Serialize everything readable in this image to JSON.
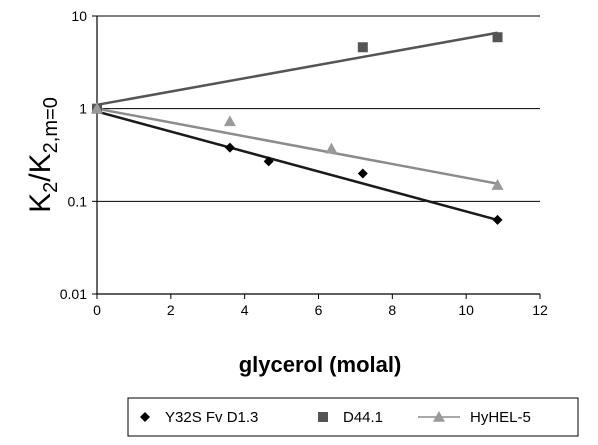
{
  "chart_data": {
    "type": "scatter",
    "xlabel": "glycerol (molal)",
    "ylabel_main": "K",
    "ylabel_sub1": "2",
    "ylabel_mid": "/K",
    "ylabel_sub2": "2,m=0",
    "x_scale": "linear",
    "y_scale": "log",
    "xlim": [
      0,
      12
    ],
    "ylim": [
      0.01,
      10
    ],
    "x_ticks": [
      "0",
      "2",
      "4",
      "6",
      "8",
      "10",
      "12"
    ],
    "y_ticks": [
      "0.01",
      "0.1",
      "1",
      "10"
    ],
    "gridlines": "horizontal",
    "legend_position": "bottom",
    "series": [
      {
        "name": "Y32S Fv D1.3",
        "marker": "diamond",
        "color": "#000000",
        "trendline_color": "#1a1a1a",
        "points": [
          [
            0,
            1.0
          ],
          [
            3.6,
            0.38
          ],
          [
            4.65,
            0.27
          ],
          [
            7.2,
            0.2
          ],
          [
            10.85,
            0.063
          ]
        ],
        "fit": [
          [
            0,
            0.93
          ],
          [
            10.85,
            0.063
          ]
        ]
      },
      {
        "name": "D44.1",
        "marker": "square",
        "color": "#555555",
        "trendline_color": "#555555",
        "points": [
          [
            0,
            1.0
          ],
          [
            7.2,
            4.6
          ],
          [
            10.85,
            5.9
          ]
        ],
        "fit": [
          [
            0,
            1.1
          ],
          [
            10.85,
            6.6
          ]
        ]
      },
      {
        "name": "HyHEL-5",
        "marker": "triangle",
        "color": "#9a9a9a",
        "trendline_color": "#8c8c8c",
        "points": [
          [
            0,
            1.0
          ],
          [
            3.6,
            0.73
          ],
          [
            6.35,
            0.37
          ],
          [
            10.85,
            0.15
          ]
        ],
        "fit": [
          [
            0,
            1.0
          ],
          [
            10.85,
            0.155
          ]
        ]
      }
    ]
  }
}
